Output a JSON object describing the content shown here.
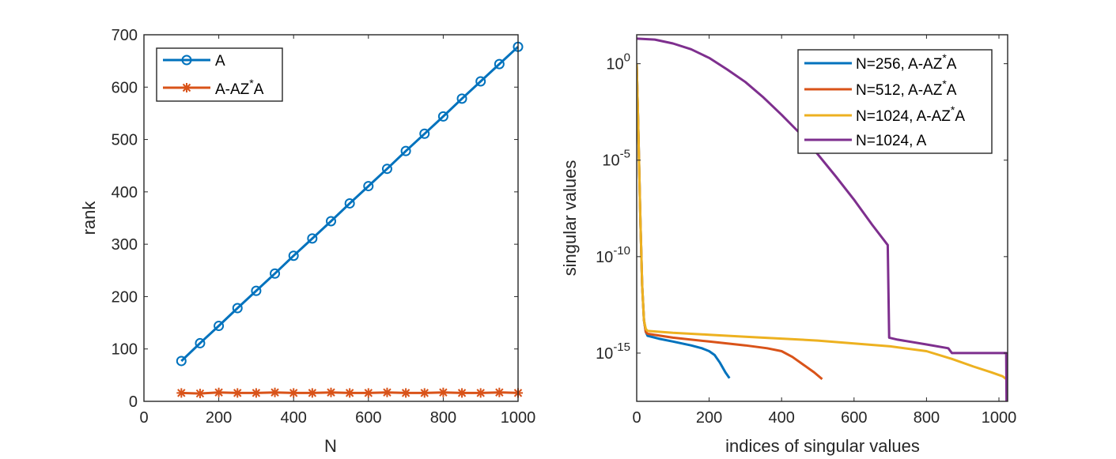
{
  "chart_data": [
    {
      "type": "line",
      "title": "",
      "xlabel": "N",
      "ylabel": "rank",
      "xlim": [
        0,
        1000
      ],
      "ylim": [
        0,
        700
      ],
      "xticks": [
        0,
        200,
        400,
        600,
        800,
        1000
      ],
      "yticks": [
        0,
        100,
        200,
        300,
        400,
        500,
        600,
        700
      ],
      "x": [
        100,
        150,
        200,
        250,
        300,
        350,
        400,
        450,
        500,
        550,
        600,
        650,
        700,
        750,
        800,
        850,
        900,
        950,
        1000
      ],
      "legend_position": "top-left",
      "series": [
        {
          "name": "A",
          "legend_main": "A",
          "marker": "circle",
          "color": "#0072BD",
          "values": [
            77,
            111,
            144,
            178,
            211,
            244,
            278,
            311,
            344,
            378,
            411,
            444,
            478,
            511,
            544,
            578,
            611,
            644,
            677
          ]
        },
        {
          "name": "A-AZ*A",
          "legend_main": "A-AZ",
          "legend_sup": "*",
          "legend_tail": "A",
          "marker": "star",
          "color": "#D95319",
          "values": [
            16,
            15,
            17,
            16,
            16,
            17,
            16,
            16,
            17,
            16,
            16,
            17,
            16,
            16,
            17,
            16,
            16,
            17,
            16
          ]
        }
      ]
    },
    {
      "type": "line",
      "title": "",
      "xlabel": "indices of singular values",
      "ylabel": "singular values",
      "yscale": "log",
      "xlim": [
        0,
        1024
      ],
      "ylim_log10": [
        -17.5,
        1.5
      ],
      "xticks": [
        0,
        200,
        400,
        600,
        800,
        1000
      ],
      "yticks_log10": [
        -15,
        -10,
        -5,
        0
      ],
      "ytick_base": "10",
      "legend_position": "top-right",
      "series": [
        {
          "name": "N=256, A-AZ*A",
          "legend_main": "N=256, A-AZ",
          "legend_sup": "*",
          "legend_tail": "A",
          "color": "#0072BD",
          "points_log10": [
            [
              0,
              0
            ],
            [
              4,
              -3
            ],
            [
              10,
              -8
            ],
            [
              15,
              -11.5
            ],
            [
              20,
              -13.3
            ],
            [
              25,
              -13.9
            ],
            [
              30,
              -14.1
            ],
            [
              60,
              -14.25
            ],
            [
              100,
              -14.4
            ],
            [
              150,
              -14.6
            ],
            [
              180,
              -14.75
            ],
            [
              200,
              -14.9
            ],
            [
              215,
              -15.1
            ],
            [
              230,
              -15.5
            ],
            [
              245,
              -16.0
            ],
            [
              256,
              -16.3
            ]
          ]
        },
        {
          "name": "N=512, A-AZ*A",
          "legend_main": "N=512, A-AZ",
          "legend_sup": "*",
          "legend_tail": "A",
          "color": "#D95319",
          "points_log10": [
            [
              0,
              0
            ],
            [
              4,
              -3
            ],
            [
              10,
              -8
            ],
            [
              15,
              -11.5
            ],
            [
              20,
              -13.3
            ],
            [
              25,
              -13.9
            ],
            [
              30,
              -14.0
            ],
            [
              100,
              -14.2
            ],
            [
              200,
              -14.4
            ],
            [
              300,
              -14.6
            ],
            [
              360,
              -14.75
            ],
            [
              400,
              -14.9
            ],
            [
              430,
              -15.2
            ],
            [
              460,
              -15.6
            ],
            [
              490,
              -16.0
            ],
            [
              512,
              -16.35
            ]
          ]
        },
        {
          "name": "N=1024, A-AZ*A",
          "legend_main": "N=1024, A-AZ",
          "legend_sup": "*",
          "legend_tail": "A",
          "color": "#EDB120",
          "points_log10": [
            [
              0,
              0
            ],
            [
              4,
              -3
            ],
            [
              10,
              -8
            ],
            [
              15,
              -11.5
            ],
            [
              20,
              -13.3
            ],
            [
              25,
              -13.75
            ],
            [
              30,
              -13.85
            ],
            [
              100,
              -13.95
            ],
            [
              200,
              -14.05
            ],
            [
              300,
              -14.15
            ],
            [
              400,
              -14.25
            ],
            [
              500,
              -14.35
            ],
            [
              600,
              -14.5
            ],
            [
              700,
              -14.65
            ],
            [
              800,
              -14.9
            ],
            [
              870,
              -15.3
            ],
            [
              930,
              -15.7
            ],
            [
              980,
              -16.0
            ],
            [
              1010,
              -16.2
            ],
            [
              1024,
              -16.4
            ]
          ]
        },
        {
          "name": "N=1024, A",
          "legend_main": "N=1024, A",
          "legend_sup": "",
          "legend_tail": "",
          "color": "#7E2F8E",
          "points_log10": [
            [
              0,
              1.3
            ],
            [
              50,
              1.25
            ],
            [
              100,
              1.05
            ],
            [
              150,
              0.75
            ],
            [
              200,
              0.3
            ],
            [
              250,
              -0.3
            ],
            [
              300,
              -0.95
            ],
            [
              350,
              -1.75
            ],
            [
              400,
              -2.65
            ],
            [
              450,
              -3.6
            ],
            [
              500,
              -4.7
            ],
            [
              550,
              -5.85
            ],
            [
              600,
              -7.05
            ],
            [
              650,
              -8.35
            ],
            [
              693,
              -9.4
            ],
            [
              697,
              -14.2
            ],
            [
              720,
              -14.3
            ],
            [
              800,
              -14.55
            ],
            [
              860,
              -14.75
            ],
            [
              870,
              -15.0
            ],
            [
              1020,
              -15.0
            ],
            [
              1021,
              -17.5
            ]
          ]
        }
      ]
    }
  ]
}
